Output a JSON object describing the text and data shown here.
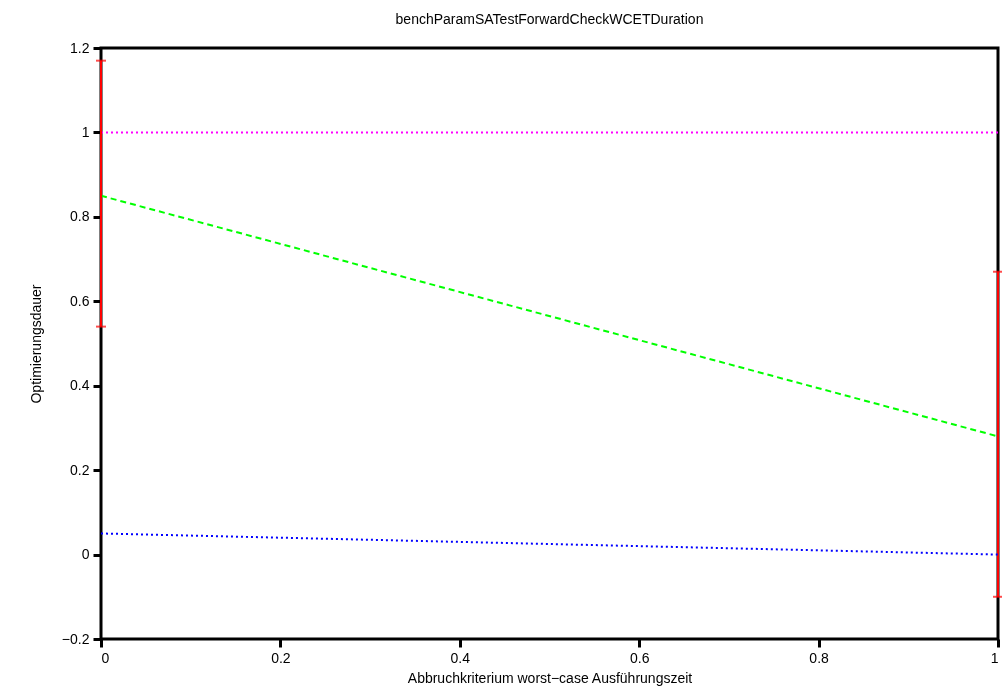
{
  "chart_data": {
    "type": "line",
    "title": "benchParamSATestForwardCheckWCETDuration",
    "xlabel": "Abbruchkriterium worst−case Ausführungszeit",
    "ylabel": "Optimierungsdauer",
    "x": [
      0,
      1
    ],
    "series": [
      {
        "color": "#ff00ff",
        "line_style": "dotted",
        "values": [
          1,
          1
        ]
      },
      {
        "color": "#00ff00",
        "line_style": "dashed",
        "values": [
          0.85,
          0.28
        ],
        "errors": [
          [
            0.54,
            1.17
          ],
          [
            -0.1,
            0.67
          ]
        ]
      },
      {
        "color": "#0000ff",
        "line_style": "dotted",
        "values": [
          0.05,
          0
        ]
      }
    ],
    "xlim": [
      0,
      1
    ],
    "ylim": [
      -0.2,
      1.2
    ],
    "xticks": [
      0,
      0.2,
      0.4,
      0.6,
      0.8,
      1
    ],
    "yticks": [
      {
        "value": -0.2,
        "label": "−0.2"
      },
      0,
      0.2,
      0.4,
      0.6,
      0.8,
      1,
      1.2
    ],
    "legend": false
  }
}
